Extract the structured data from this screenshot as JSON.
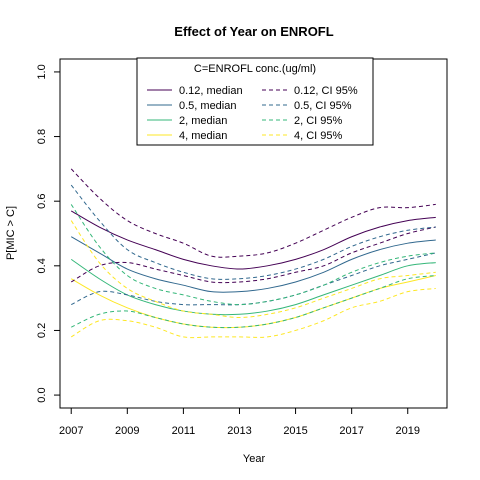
{
  "chart_data": {
    "type": "line",
    "title": "Effect of Year on ENROFL",
    "xlabel": "Year",
    "ylabel": "P[MIC > C]",
    "xlim": [
      2006.6,
      2020.4
    ],
    "ylim": [
      -0.04,
      1.04
    ],
    "xticks": [
      2007,
      2009,
      2011,
      2013,
      2015,
      2017,
      2019
    ],
    "yticks": [
      0.0,
      0.2,
      0.4,
      0.6,
      0.8,
      1.0
    ],
    "ytick_labels": [
      "0.0",
      "0.2",
      "0.4",
      "0.6",
      "0.8",
      "1.0"
    ],
    "legend_title": "C=ENROFL conc.(ug/ml)",
    "legend_position": "top-center",
    "x": [
      2007,
      2008,
      2009,
      2010,
      2011,
      2012,
      2013,
      2014,
      2015,
      2016,
      2017,
      2018,
      2019,
      2020
    ],
    "series": [
      {
        "name": "0.12, median",
        "color": "#440154",
        "dash": false,
        "values": [
          0.57,
          0.52,
          0.48,
          0.45,
          0.42,
          0.4,
          0.39,
          0.4,
          0.42,
          0.45,
          0.49,
          0.52,
          0.54,
          0.55
        ]
      },
      {
        "name": "0.5, median",
        "color": "#31688e",
        "dash": false,
        "values": [
          0.49,
          0.44,
          0.39,
          0.36,
          0.34,
          0.32,
          0.32,
          0.33,
          0.35,
          0.38,
          0.42,
          0.45,
          0.47,
          0.48
        ]
      },
      {
        "name": "2, median",
        "color": "#35b779",
        "dash": false,
        "values": [
          0.42,
          0.36,
          0.31,
          0.28,
          0.26,
          0.25,
          0.25,
          0.26,
          0.28,
          0.31,
          0.34,
          0.37,
          0.4,
          0.41
        ]
      },
      {
        "name": "4, median",
        "color": "#fde725",
        "dash": false,
        "values": [
          0.36,
          0.31,
          0.27,
          0.24,
          0.22,
          0.21,
          0.21,
          0.22,
          0.24,
          0.27,
          0.3,
          0.33,
          0.35,
          0.37
        ]
      },
      {
        "name": "0.12, CI 95%",
        "color": "#440154",
        "dash": true,
        "values": [
          0.7,
          0.61,
          0.54,
          0.5,
          0.47,
          0.43,
          0.43,
          0.44,
          0.47,
          0.51,
          0.55,
          0.58,
          0.58,
          0.59
        ]
      },
      {
        "name": "0.12, CI 95% (lower)",
        "color": "#440154",
        "dash": true,
        "values": [
          0.35,
          0.4,
          0.41,
          0.39,
          0.37,
          0.35,
          0.35,
          0.36,
          0.38,
          0.4,
          0.44,
          0.47,
          0.5,
          0.52
        ]
      },
      {
        "name": "0.5, CI 95%",
        "color": "#31688e",
        "dash": true,
        "values": [
          0.65,
          0.54,
          0.45,
          0.41,
          0.38,
          0.36,
          0.36,
          0.37,
          0.39,
          0.42,
          0.46,
          0.49,
          0.51,
          0.52
        ]
      },
      {
        "name": "0.5, CI 95% (lower)",
        "color": "#31688e",
        "dash": true,
        "values": [
          0.28,
          0.32,
          0.31,
          0.29,
          0.28,
          0.28,
          0.28,
          0.29,
          0.31,
          0.34,
          0.37,
          0.4,
          0.42,
          0.44
        ]
      },
      {
        "name": "2, CI 95%",
        "color": "#35b779",
        "dash": true,
        "values": [
          0.59,
          0.46,
          0.37,
          0.33,
          0.31,
          0.29,
          0.28,
          0.29,
          0.31,
          0.34,
          0.38,
          0.41,
          0.43,
          0.44
        ]
      },
      {
        "name": "2, CI 95% (lower)",
        "color": "#35b779",
        "dash": true,
        "values": [
          0.21,
          0.25,
          0.26,
          0.24,
          0.22,
          0.21,
          0.21,
          0.22,
          0.24,
          0.27,
          0.3,
          0.33,
          0.36,
          0.37
        ]
      },
      {
        "name": "4, CI 95%",
        "color": "#fde725",
        "dash": true,
        "values": [
          0.54,
          0.41,
          0.33,
          0.29,
          0.26,
          0.25,
          0.24,
          0.25,
          0.27,
          0.3,
          0.33,
          0.36,
          0.37,
          0.38
        ]
      },
      {
        "name": "4, CI 95% (lower)",
        "color": "#fde725",
        "dash": true,
        "values": [
          0.18,
          0.23,
          0.23,
          0.21,
          0.18,
          0.18,
          0.18,
          0.18,
          0.2,
          0.23,
          0.27,
          0.29,
          0.32,
          0.33
        ]
      }
    ],
    "legend": [
      {
        "label": "0.12, median",
        "color": "#440154",
        "dash": false
      },
      {
        "label": "0.12, CI 95%",
        "color": "#440154",
        "dash": true
      },
      {
        "label": "0.5, median",
        "color": "#31688e",
        "dash": false
      },
      {
        "label": "0.5, CI 95%",
        "color": "#31688e",
        "dash": true
      },
      {
        "label": "2, median",
        "color": "#35b779",
        "dash": false
      },
      {
        "label": "2, CI 95%",
        "color": "#35b779",
        "dash": true
      },
      {
        "label": "4, median",
        "color": "#fde725",
        "dash": false
      },
      {
        "label": "4, CI 95%",
        "color": "#fde725",
        "dash": true
      }
    ]
  }
}
